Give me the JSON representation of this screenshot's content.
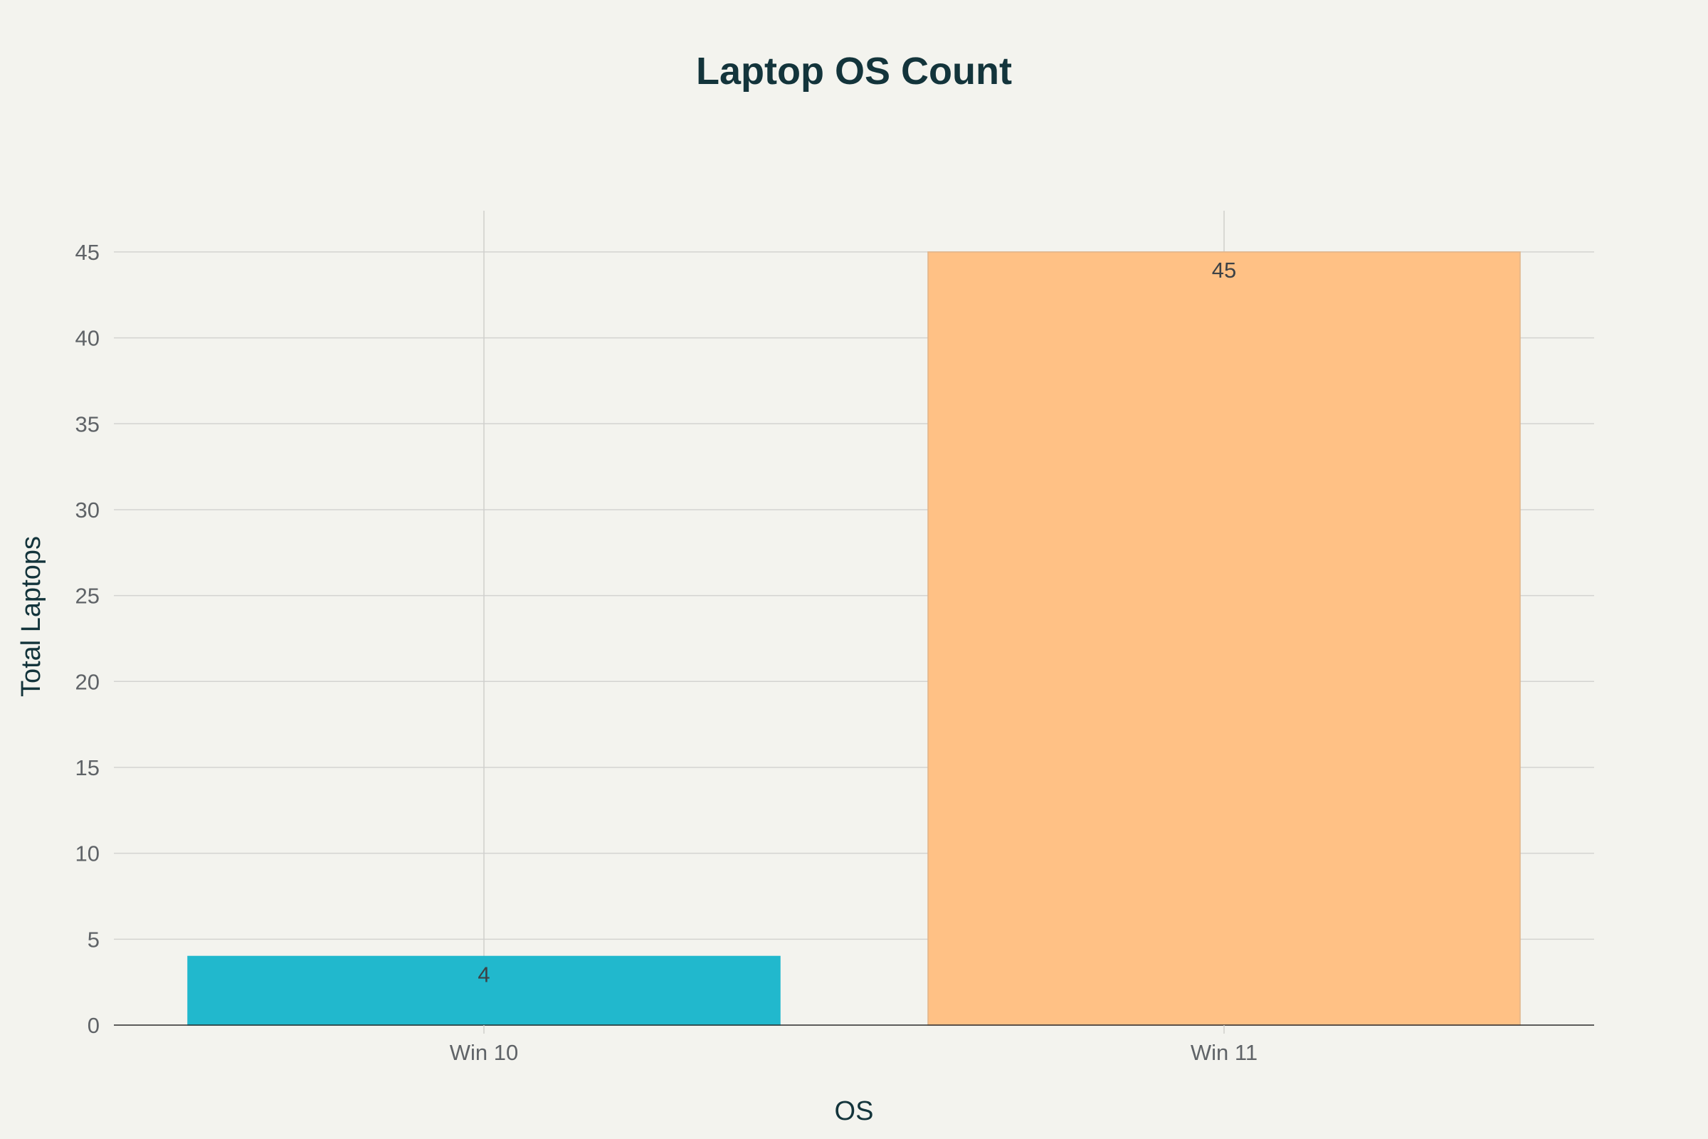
{
  "chart_data": {
    "type": "bar",
    "title": "Laptop OS Count",
    "xlabel": "OS",
    "ylabel": "Total Laptops",
    "categories": [
      "Win 10",
      "Win 11"
    ],
    "values": [
      4,
      45
    ],
    "data_labels": [
      "4",
      "45"
    ],
    "bar_colors": [
      "#21b8cd",
      "#ffc185"
    ],
    "ylim": [
      0,
      47.4
    ],
    "yticks": [
      0,
      5,
      10,
      15,
      20,
      25,
      30,
      35,
      40,
      45
    ],
    "grid": true,
    "legend": "none"
  }
}
